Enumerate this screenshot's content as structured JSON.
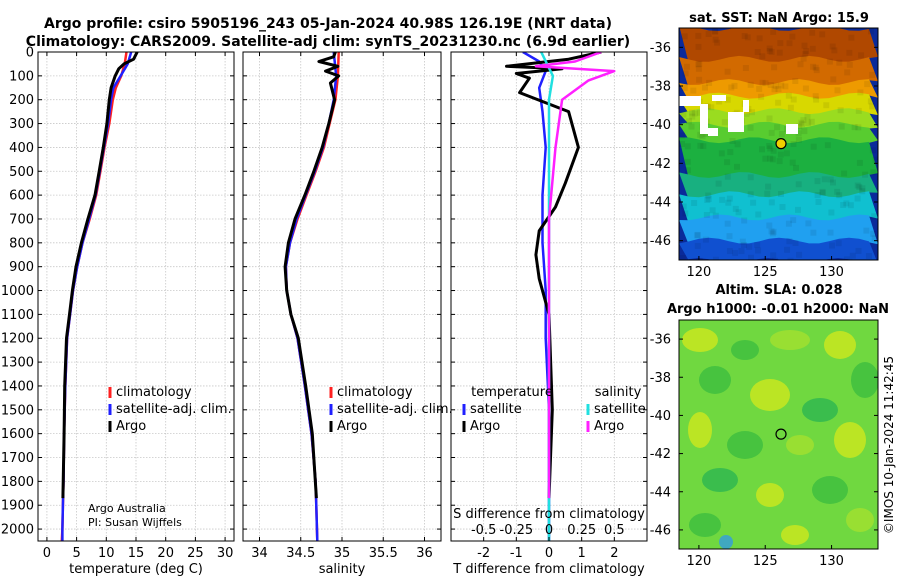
{
  "title": {
    "line1": "Argo profile: csiro 5905196_243 05-Jan-2024 40.98S 126.19E (NRT data)",
    "line2": "Climatology: CARS2009. Satellite-adj clim: synTS_20231230.nc (6.9d earlier)"
  },
  "credit": {
    "org": "Argo Australia",
    "pi": "PI: Susan Wijffels"
  },
  "timestamp": "©IMOS 10-Jan-2024 11:42:45",
  "colors": {
    "clim": "#ff2020",
    "sat": "#2020ff",
    "argo": "#000000",
    "sat_s": "#20e0e0",
    "argo_s": "#ff20ff"
  },
  "chart_data": [
    {
      "id": "temperature",
      "type": "line",
      "xlabel": "temperature (deg C)",
      "ylabel": "",
      "xlim": [
        -1.5,
        31.5
      ],
      "ylim": [
        0,
        2050
      ],
      "y_reversed": true,
      "xticks": [
        0,
        5,
        10,
        15,
        20,
        25,
        30
      ],
      "yticks": [
        0,
        100,
        200,
        300,
        400,
        500,
        600,
        700,
        800,
        900,
        1000,
        1100,
        1200,
        1300,
        1400,
        1500,
        1600,
        1700,
        1800,
        1900,
        2000
      ],
      "grid": true,
      "legend": [
        "climatology",
        "satellite-adj. clim.",
        "Argo"
      ],
      "series": [
        {
          "name": "climatology",
          "color_key": "clim",
          "x": [
            13.4,
            13.1,
            12.5,
            11.6,
            11.1,
            10.5,
            9.7,
            9.0,
            8.3,
            7.2,
            6.0,
            5.1,
            4.4,
            3.9,
            3.4,
            3.1,
            2.9,
            2.8,
            2.7,
            2.6,
            2.5
          ],
          "depth": [
            0,
            50,
            100,
            150,
            200,
            300,
            400,
            500,
            600,
            700,
            800,
            900,
            1000,
            1100,
            1200,
            1400,
            1600,
            1800,
            1900,
            2000,
            2050
          ]
        },
        {
          "name": "satellite-adj. clim.",
          "color_key": "sat",
          "x": [
            14.2,
            13.6,
            12.4,
            11.2,
            10.8,
            10.3,
            9.6,
            8.9,
            8.2,
            7.1,
            6.0,
            5.1,
            4.4,
            3.9,
            3.4,
            3.1,
            2.9,
            2.8,
            2.7,
            2.6,
            2.6
          ],
          "depth": [
            0,
            50,
            100,
            150,
            200,
            300,
            400,
            500,
            600,
            700,
            800,
            900,
            1000,
            1100,
            1200,
            1400,
            1600,
            1800,
            1900,
            2000,
            2050
          ]
        },
        {
          "name": "Argo",
          "color_key": "argo",
          "x": [
            15.2,
            14.6,
            13.0,
            12.1,
            11.5,
            10.8,
            10.5,
            10.1,
            9.5,
            8.8,
            8.1,
            6.9,
            5.8,
            4.9,
            4.3,
            3.8,
            3.3,
            3.0,
            2.9,
            2.7
          ],
          "depth": [
            0,
            30,
            50,
            70,
            100,
            150,
            200,
            300,
            400,
            500,
            600,
            700,
            800,
            900,
            1000,
            1100,
            1200,
            1400,
            1600,
            1870
          ]
        }
      ]
    },
    {
      "id": "salinity",
      "type": "line",
      "xlabel": "salinity",
      "ylabel": "",
      "xlim": [
        33.8,
        36.2
      ],
      "ylim": [
        0,
        2050
      ],
      "y_reversed": true,
      "xticks": [
        34,
        34.5,
        35,
        35.5,
        36
      ],
      "grid": true,
      "legend": [
        "climatology",
        "satellite-adj. clim.",
        "Argo"
      ],
      "series": [
        {
          "name": "climatology",
          "color_key": "clim",
          "x": [
            34.96,
            34.95,
            34.92,
            34.85,
            34.78,
            34.68,
            34.57,
            34.46,
            34.37,
            34.32,
            34.33,
            34.38,
            34.46,
            34.55,
            34.63,
            34.68,
            34.7
          ],
          "depth": [
            0,
            100,
            200,
            300,
            400,
            500,
            600,
            700,
            800,
            900,
            1000,
            1100,
            1200,
            1400,
            1600,
            1800,
            2050
          ]
        },
        {
          "name": "satellite-adj. clim.",
          "color_key": "sat",
          "x": [
            34.9,
            34.93,
            34.9,
            34.84,
            34.77,
            34.67,
            34.56,
            34.45,
            34.37,
            34.32,
            34.33,
            34.38,
            34.46,
            34.55,
            34.63,
            34.68,
            34.7
          ],
          "depth": [
            0,
            100,
            200,
            300,
            400,
            500,
            600,
            700,
            800,
            900,
            1000,
            1100,
            1200,
            1400,
            1600,
            1800,
            2050
          ]
        },
        {
          "name": "Argo",
          "color_key": "argo",
          "x": [
            34.92,
            34.9,
            34.72,
            34.95,
            34.8,
            34.96,
            34.86,
            34.91,
            34.84,
            34.76,
            34.66,
            34.55,
            34.43,
            34.35,
            34.31,
            34.33,
            34.38,
            34.47,
            34.56,
            34.64,
            34.69
          ],
          "depth": [
            0,
            20,
            40,
            60,
            80,
            100,
            130,
            200,
            300,
            400,
            500,
            600,
            700,
            800,
            900,
            1000,
            1100,
            1200,
            1400,
            1600,
            1870
          ]
        }
      ]
    },
    {
      "id": "difference",
      "type": "line",
      "xlabel": "T difference from climatology",
      "xlabel_top": "S difference from climatology",
      "xlim": [
        -3,
        3
      ],
      "ylim": [
        0,
        2050
      ],
      "y_reversed": true,
      "xticks": [
        -2,
        -1,
        0,
        1,
        2
      ],
      "xtick_labels": [
        "-2",
        "-1",
        "0",
        "1",
        "2"
      ],
      "sticks": [
        "-0.5",
        "-0.25",
        "0",
        "0.25",
        "0.5"
      ],
      "grid": true,
      "legend_temperature_title": "temperature",
      "legend_salinity_title": "salinity",
      "legend_temperature": [
        "satellite",
        "Argo"
      ],
      "legend_salinity": [
        "satellite",
        "Argo"
      ],
      "series": [
        {
          "name": "temperature satellite",
          "color_key": "sat",
          "x": [
            -0.8,
            -0.3,
            -0.1,
            -0.3,
            -0.2,
            -0.1,
            -0.2,
            -0.2,
            -0.1,
            -0.1,
            0.0,
            0.0,
            0.0
          ],
          "depth": [
            0,
            40,
            80,
            150,
            250,
            400,
            600,
            800,
            1000,
            1200,
            1500,
            1800,
            2050
          ]
        },
        {
          "name": "temperature Argo",
          "color_key": "argo",
          "x": [
            1.6,
            0.6,
            -1.3,
            0.4,
            -1.0,
            -0.6,
            -0.9,
            0.6,
            0.9,
            0.5,
            0.2,
            -0.3,
            -0.4,
            -0.3,
            0.0,
            0.1,
            0.0
          ],
          "depth": [
            0,
            30,
            60,
            70,
            90,
            110,
            170,
            250,
            400,
            550,
            650,
            750,
            850,
            950,
            1100,
            1500,
            1870
          ]
        },
        {
          "name": "salinity satellite",
          "color_key": "sat_s",
          "x": [
            -0.06,
            0.03,
            0.0,
            0.0,
            0.0,
            0.0,
            0.0
          ],
          "depth": [
            0,
            100,
            200,
            500,
            1000,
            1500,
            2050
          ]
        },
        {
          "name": "salinity Argo",
          "color_key": "argo_s",
          "x": [
            0.4,
            0.2,
            -0.1,
            0.5,
            0.3,
            0.1,
            0.05,
            0.0,
            0.0,
            0.0,
            0.0,
            0.0
          ],
          "depth": [
            0,
            40,
            60,
            80,
            120,
            200,
            400,
            700,
            1000,
            1300,
            1600,
            1870
          ]
        }
      ]
    },
    {
      "id": "sat_sst_map",
      "type": "heatmap",
      "title": "sat. SST: NaN Argo: 15.9",
      "xlim": [
        118.5,
        133.5
      ],
      "ylim": [
        -47,
        -35
      ],
      "xticks": [
        120,
        125,
        130
      ],
      "yticks": [
        -36,
        -38,
        -40,
        -42,
        -44,
        -46
      ],
      "marker": {
        "lon": 126.19,
        "lat": -40.98
      },
      "bands": [
        {
          "lat_top": -35.0,
          "color": "#b04800"
        },
        {
          "lat_top": -36.6,
          "color": "#d26a00"
        },
        {
          "lat_top": -37.8,
          "color": "#ee9a00"
        },
        {
          "lat_top": -38.5,
          "color": "#d8d800"
        },
        {
          "lat_top": -39.3,
          "color": "#9adc20"
        },
        {
          "lat_top": -40.0,
          "color": "#58cc30"
        },
        {
          "lat_top": -40.8,
          "color": "#1cb040"
        },
        {
          "lat_top": -42.6,
          "color": "#18b080"
        },
        {
          "lat_top": -43.6,
          "color": "#10c0d0"
        },
        {
          "lat_top": -44.8,
          "color": "#20a0f0"
        },
        {
          "lat_top": -46.0,
          "color": "#1050d0"
        }
      ]
    },
    {
      "id": "altim_map",
      "type": "heatmap",
      "title": "Altim. SLA: 0.028",
      "subtitle": "Argo h1000: -0.01 h2000: NaN",
      "xlim": [
        118.5,
        133.5
      ],
      "ylim": [
        -47,
        -35
      ],
      "xticks": [
        120,
        125,
        130
      ],
      "yticks": [
        -36,
        -38,
        -40,
        -42,
        -44,
        -46
      ],
      "marker": {
        "lon": 126.19,
        "lat": -40.98
      },
      "base_color": "#70d840",
      "blob_colors": [
        "#c8e820",
        "#40c040",
        "#a0e030",
        "#30b850"
      ]
    }
  ]
}
